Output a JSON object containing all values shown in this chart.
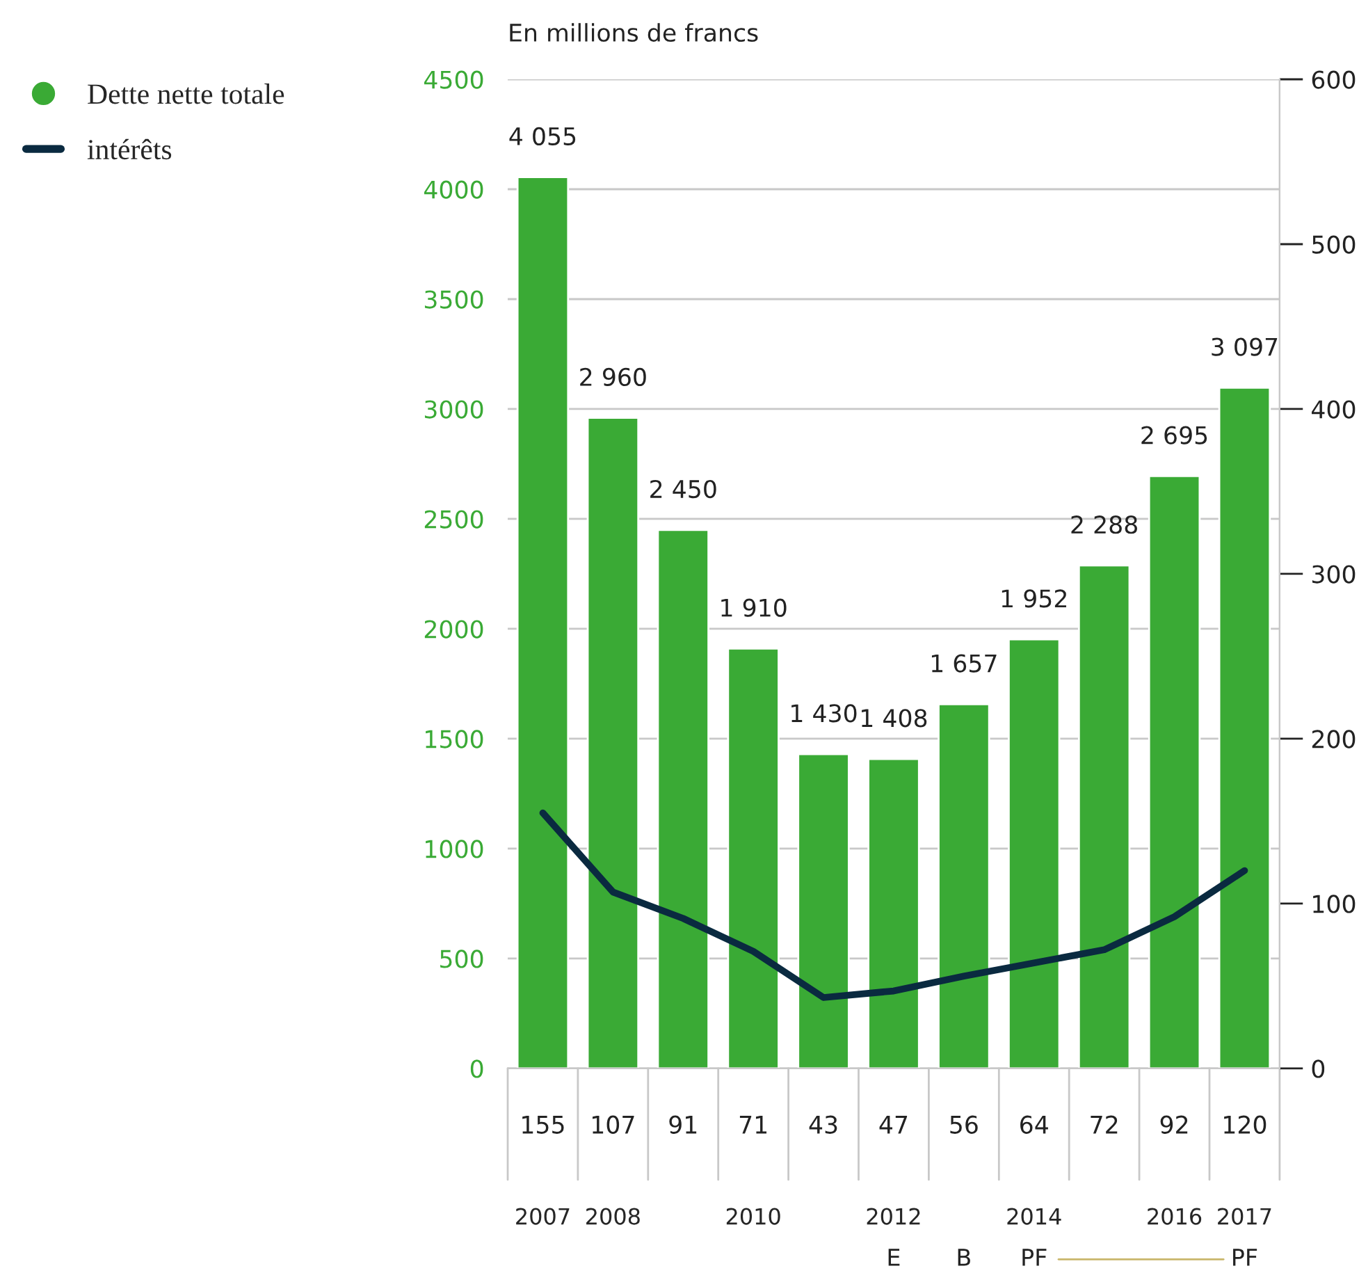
{
  "chart_data": {
    "type": "bar",
    "ylabel": "En millions de francs",
    "categories": [
      "2007",
      "2008",
      null,
      "2010",
      null,
      "2012",
      null,
      "2014",
      null,
      "2016",
      "2017"
    ],
    "series": [
      {
        "name": "Dette nette totale",
        "color": "#3aaa35",
        "values": [
          4055,
          2960,
          2450,
          1910,
          1430,
          1408,
          1657,
          1952,
          2288,
          2695,
          3097
        ],
        "value_labels": [
          "4 055",
          "2 960",
          "2 450",
          "1 910",
          "1 430",
          "1 408",
          "1 657",
          "1 952",
          "2 288",
          "2 695",
          "3 097"
        ]
      },
      {
        "name": "intérêts",
        "type": "line",
        "axis": "y2",
        "color": "#0a2a40",
        "values": [
          155,
          107,
          91,
          71,
          43,
          47,
          56,
          64,
          72,
          92,
          120
        ],
        "value_labels": [
          "155",
          "107",
          "91",
          "71",
          "43",
          "47",
          "56",
          "64",
          "72",
          "92",
          "120"
        ]
      }
    ],
    "ylim": [
      0,
      4500
    ],
    "yticks": [
      0,
      500,
      1000,
      1500,
      2000,
      2500,
      3000,
      3500,
      4000,
      4500
    ],
    "y2lim": [
      0,
      600
    ],
    "y2ticks": [
      0,
      100,
      200,
      300,
      400,
      500,
      600
    ],
    "annotations": [
      "E",
      "B",
      "PF",
      "PF"
    ],
    "grid": "y",
    "legend": "top left",
    "marker": "none",
    "line_style": "solid"
  }
}
